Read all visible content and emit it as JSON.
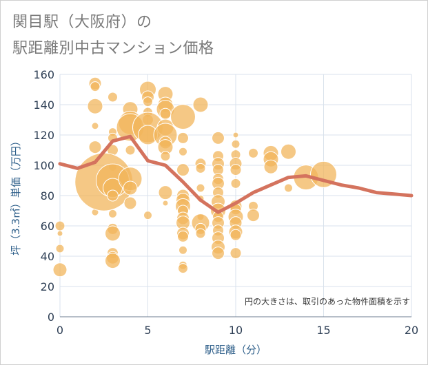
{
  "title_line1": "関目駅（大阪府）の",
  "title_line2": "駅距離別中古マンション価格",
  "chart_data": {
    "type": "scatter",
    "xlabel": "駅距離（分）",
    "ylabel": "坪（3.3㎡）単価（万円）",
    "note": "円の大きさは、取引のあった物件面積を示す",
    "xlim": [
      0,
      20
    ],
    "ylim": [
      0,
      160
    ],
    "xticks": [
      "0",
      "5",
      "10",
      "15",
      "20"
    ],
    "yticks": [
      "0",
      "20",
      "40",
      "60",
      "80",
      "100",
      "120",
      "140",
      "160"
    ],
    "colors": {
      "bubble": "#f2b65c",
      "line": "#d4735e",
      "grid": "#d9e2ec"
    },
    "line": {
      "x": [
        0,
        1,
        2,
        3,
        4,
        5,
        6,
        7,
        8,
        9,
        10,
        11,
        12,
        13,
        14,
        15,
        16,
        17,
        18,
        19,
        20
      ],
      "y": [
        101,
        98,
        102,
        116,
        119,
        103,
        100,
        89,
        77,
        69,
        75,
        82,
        87,
        92,
        93,
        90,
        87,
        85,
        82,
        81,
        80
      ]
    },
    "bubbles": [
      {
        "x": 0,
        "y": 60,
        "s": 7
      },
      {
        "x": 0,
        "y": 45,
        "s": 6
      },
      {
        "x": 0,
        "y": 55,
        "s": 4
      },
      {
        "x": 0,
        "y": 31,
        "s": 10
      },
      {
        "x": 2,
        "y": 154,
        "s": 9
      },
      {
        "x": 2,
        "y": 152,
        "s": 7
      },
      {
        "x": 2,
        "y": 139,
        "s": 11
      },
      {
        "x": 2,
        "y": 126,
        "s": 5
      },
      {
        "x": 2,
        "y": 112,
        "s": 9
      },
      {
        "x": 2,
        "y": 69,
        "s": 5
      },
      {
        "x": 3,
        "y": 145,
        "s": 7
      },
      {
        "x": 3,
        "y": 122,
        "s": 6
      },
      {
        "x": 3,
        "y": 118,
        "s": 7
      },
      {
        "x": 3,
        "y": 110,
        "s": 8
      },
      {
        "x": 3,
        "y": 99,
        "s": 6
      },
      {
        "x": 2.5,
        "y": 89,
        "s": 42
      },
      {
        "x": 3,
        "y": 90,
        "s": 24
      },
      {
        "x": 3,
        "y": 85,
        "s": 14
      },
      {
        "x": 3,
        "y": 80,
        "s": 8
      },
      {
        "x": 3,
        "y": 68,
        "s": 6
      },
      {
        "x": 3,
        "y": 58,
        "s": 8
      },
      {
        "x": 3,
        "y": 55,
        "s": 11
      },
      {
        "x": 3,
        "y": 42,
        "s": 8
      },
      {
        "x": 3,
        "y": 39,
        "s": 9
      },
      {
        "x": 3,
        "y": 37,
        "s": 11
      },
      {
        "x": 4,
        "y": 137,
        "s": 11
      },
      {
        "x": 4,
        "y": 128,
        "s": 17
      },
      {
        "x": 4,
        "y": 125,
        "s": 20
      },
      {
        "x": 4,
        "y": 110,
        "s": 7
      },
      {
        "x": 4,
        "y": 91,
        "s": 17
      },
      {
        "x": 4,
        "y": 85,
        "s": 10
      },
      {
        "x": 4,
        "y": 75,
        "s": 9
      },
      {
        "x": 5,
        "y": 150,
        "s": 12
      },
      {
        "x": 5,
        "y": 145,
        "s": 9
      },
      {
        "x": 5,
        "y": 142,
        "s": 7
      },
      {
        "x": 5,
        "y": 135,
        "s": 7
      },
      {
        "x": 5,
        "y": 130,
        "s": 8
      },
      {
        "x": 5,
        "y": 125,
        "s": 22
      },
      {
        "x": 5,
        "y": 120,
        "s": 14
      },
      {
        "x": 5,
        "y": 67,
        "s": 6
      },
      {
        "x": 6,
        "y": 147,
        "s": 11
      },
      {
        "x": 6,
        "y": 140,
        "s": 11
      },
      {
        "x": 6,
        "y": 137,
        "s": 13
      },
      {
        "x": 6,
        "y": 134,
        "s": 8
      },
      {
        "x": 6,
        "y": 125,
        "s": 12
      },
      {
        "x": 6,
        "y": 120,
        "s": 17
      },
      {
        "x": 6,
        "y": 115,
        "s": 9
      },
      {
        "x": 6,
        "y": 112,
        "s": 11
      },
      {
        "x": 6,
        "y": 106,
        "s": 7
      },
      {
        "x": 6,
        "y": 82,
        "s": 10
      },
      {
        "x": 6,
        "y": 75,
        "s": 4
      },
      {
        "x": 7,
        "y": 132,
        "s": 18
      },
      {
        "x": 7,
        "y": 118,
        "s": 8
      },
      {
        "x": 7,
        "y": 109,
        "s": 6
      },
      {
        "x": 7,
        "y": 97,
        "s": 9
      },
      {
        "x": 7,
        "y": 80,
        "s": 9
      },
      {
        "x": 7,
        "y": 77,
        "s": 10
      },
      {
        "x": 7,
        "y": 73,
        "s": 11
      },
      {
        "x": 7,
        "y": 70,
        "s": 8
      },
      {
        "x": 7,
        "y": 65,
        "s": 9
      },
      {
        "x": 7,
        "y": 62,
        "s": 10
      },
      {
        "x": 7,
        "y": 55,
        "s": 9
      },
      {
        "x": 7,
        "y": 53,
        "s": 8
      },
      {
        "x": 7,
        "y": 44,
        "s": 6
      },
      {
        "x": 7,
        "y": 34,
        "s": 6
      },
      {
        "x": 7,
        "y": 32,
        "s": 7
      },
      {
        "x": 8,
        "y": 140,
        "s": 11
      },
      {
        "x": 8,
        "y": 101,
        "s": 8
      },
      {
        "x": 8,
        "y": 98,
        "s": 7
      },
      {
        "x": 8,
        "y": 85,
        "s": 6
      },
      {
        "x": 8,
        "y": 78,
        "s": 5
      },
      {
        "x": 8,
        "y": 66,
        "s": 5
      },
      {
        "x": 8,
        "y": 62,
        "s": 13
      },
      {
        "x": 8,
        "y": 58,
        "s": 8
      },
      {
        "x": 8,
        "y": 55,
        "s": 7
      },
      {
        "x": 9,
        "y": 118,
        "s": 9
      },
      {
        "x": 9,
        "y": 106,
        "s": 8
      },
      {
        "x": 9,
        "y": 101,
        "s": 9
      },
      {
        "x": 9,
        "y": 97,
        "s": 8
      },
      {
        "x": 9,
        "y": 91,
        "s": 8
      },
      {
        "x": 9,
        "y": 88,
        "s": 9
      },
      {
        "x": 9,
        "y": 82,
        "s": 8
      },
      {
        "x": 9,
        "y": 76,
        "s": 10
      },
      {
        "x": 9,
        "y": 70,
        "s": 11
      },
      {
        "x": 9,
        "y": 66,
        "s": 8
      },
      {
        "x": 9,
        "y": 62,
        "s": 9
      },
      {
        "x": 9,
        "y": 57,
        "s": 8
      },
      {
        "x": 9,
        "y": 52,
        "s": 9
      },
      {
        "x": 9,
        "y": 46,
        "s": 10
      },
      {
        "x": 9,
        "y": 42,
        "s": 9
      },
      {
        "x": 10,
        "y": 120,
        "s": 4
      },
      {
        "x": 10,
        "y": 114,
        "s": 6
      },
      {
        "x": 10,
        "y": 107,
        "s": 7
      },
      {
        "x": 10,
        "y": 101,
        "s": 9
      },
      {
        "x": 10,
        "y": 97,
        "s": 8
      },
      {
        "x": 10,
        "y": 88,
        "s": 7
      },
      {
        "x": 10,
        "y": 73,
        "s": 9
      },
      {
        "x": 10,
        "y": 71,
        "s": 8
      },
      {
        "x": 10,
        "y": 66,
        "s": 11
      },
      {
        "x": 10,
        "y": 62,
        "s": 9
      },
      {
        "x": 10,
        "y": 56,
        "s": 10
      },
      {
        "x": 10,
        "y": 54,
        "s": 8
      },
      {
        "x": 10,
        "y": 42,
        "s": 8
      },
      {
        "x": 11,
        "y": 108,
        "s": 7
      },
      {
        "x": 11,
        "y": 73,
        "s": 7
      },
      {
        "x": 11,
        "y": 67,
        "s": 9
      },
      {
        "x": 12,
        "y": 108,
        "s": 11
      },
      {
        "x": 12,
        "y": 104,
        "s": 11
      },
      {
        "x": 12,
        "y": 99,
        "s": 10
      },
      {
        "x": 13,
        "y": 109,
        "s": 11
      },
      {
        "x": 13,
        "y": 85,
        "s": 6
      },
      {
        "x": 14,
        "y": 92,
        "s": 18
      },
      {
        "x": 15,
        "y": 94,
        "s": 19
      }
    ]
  }
}
